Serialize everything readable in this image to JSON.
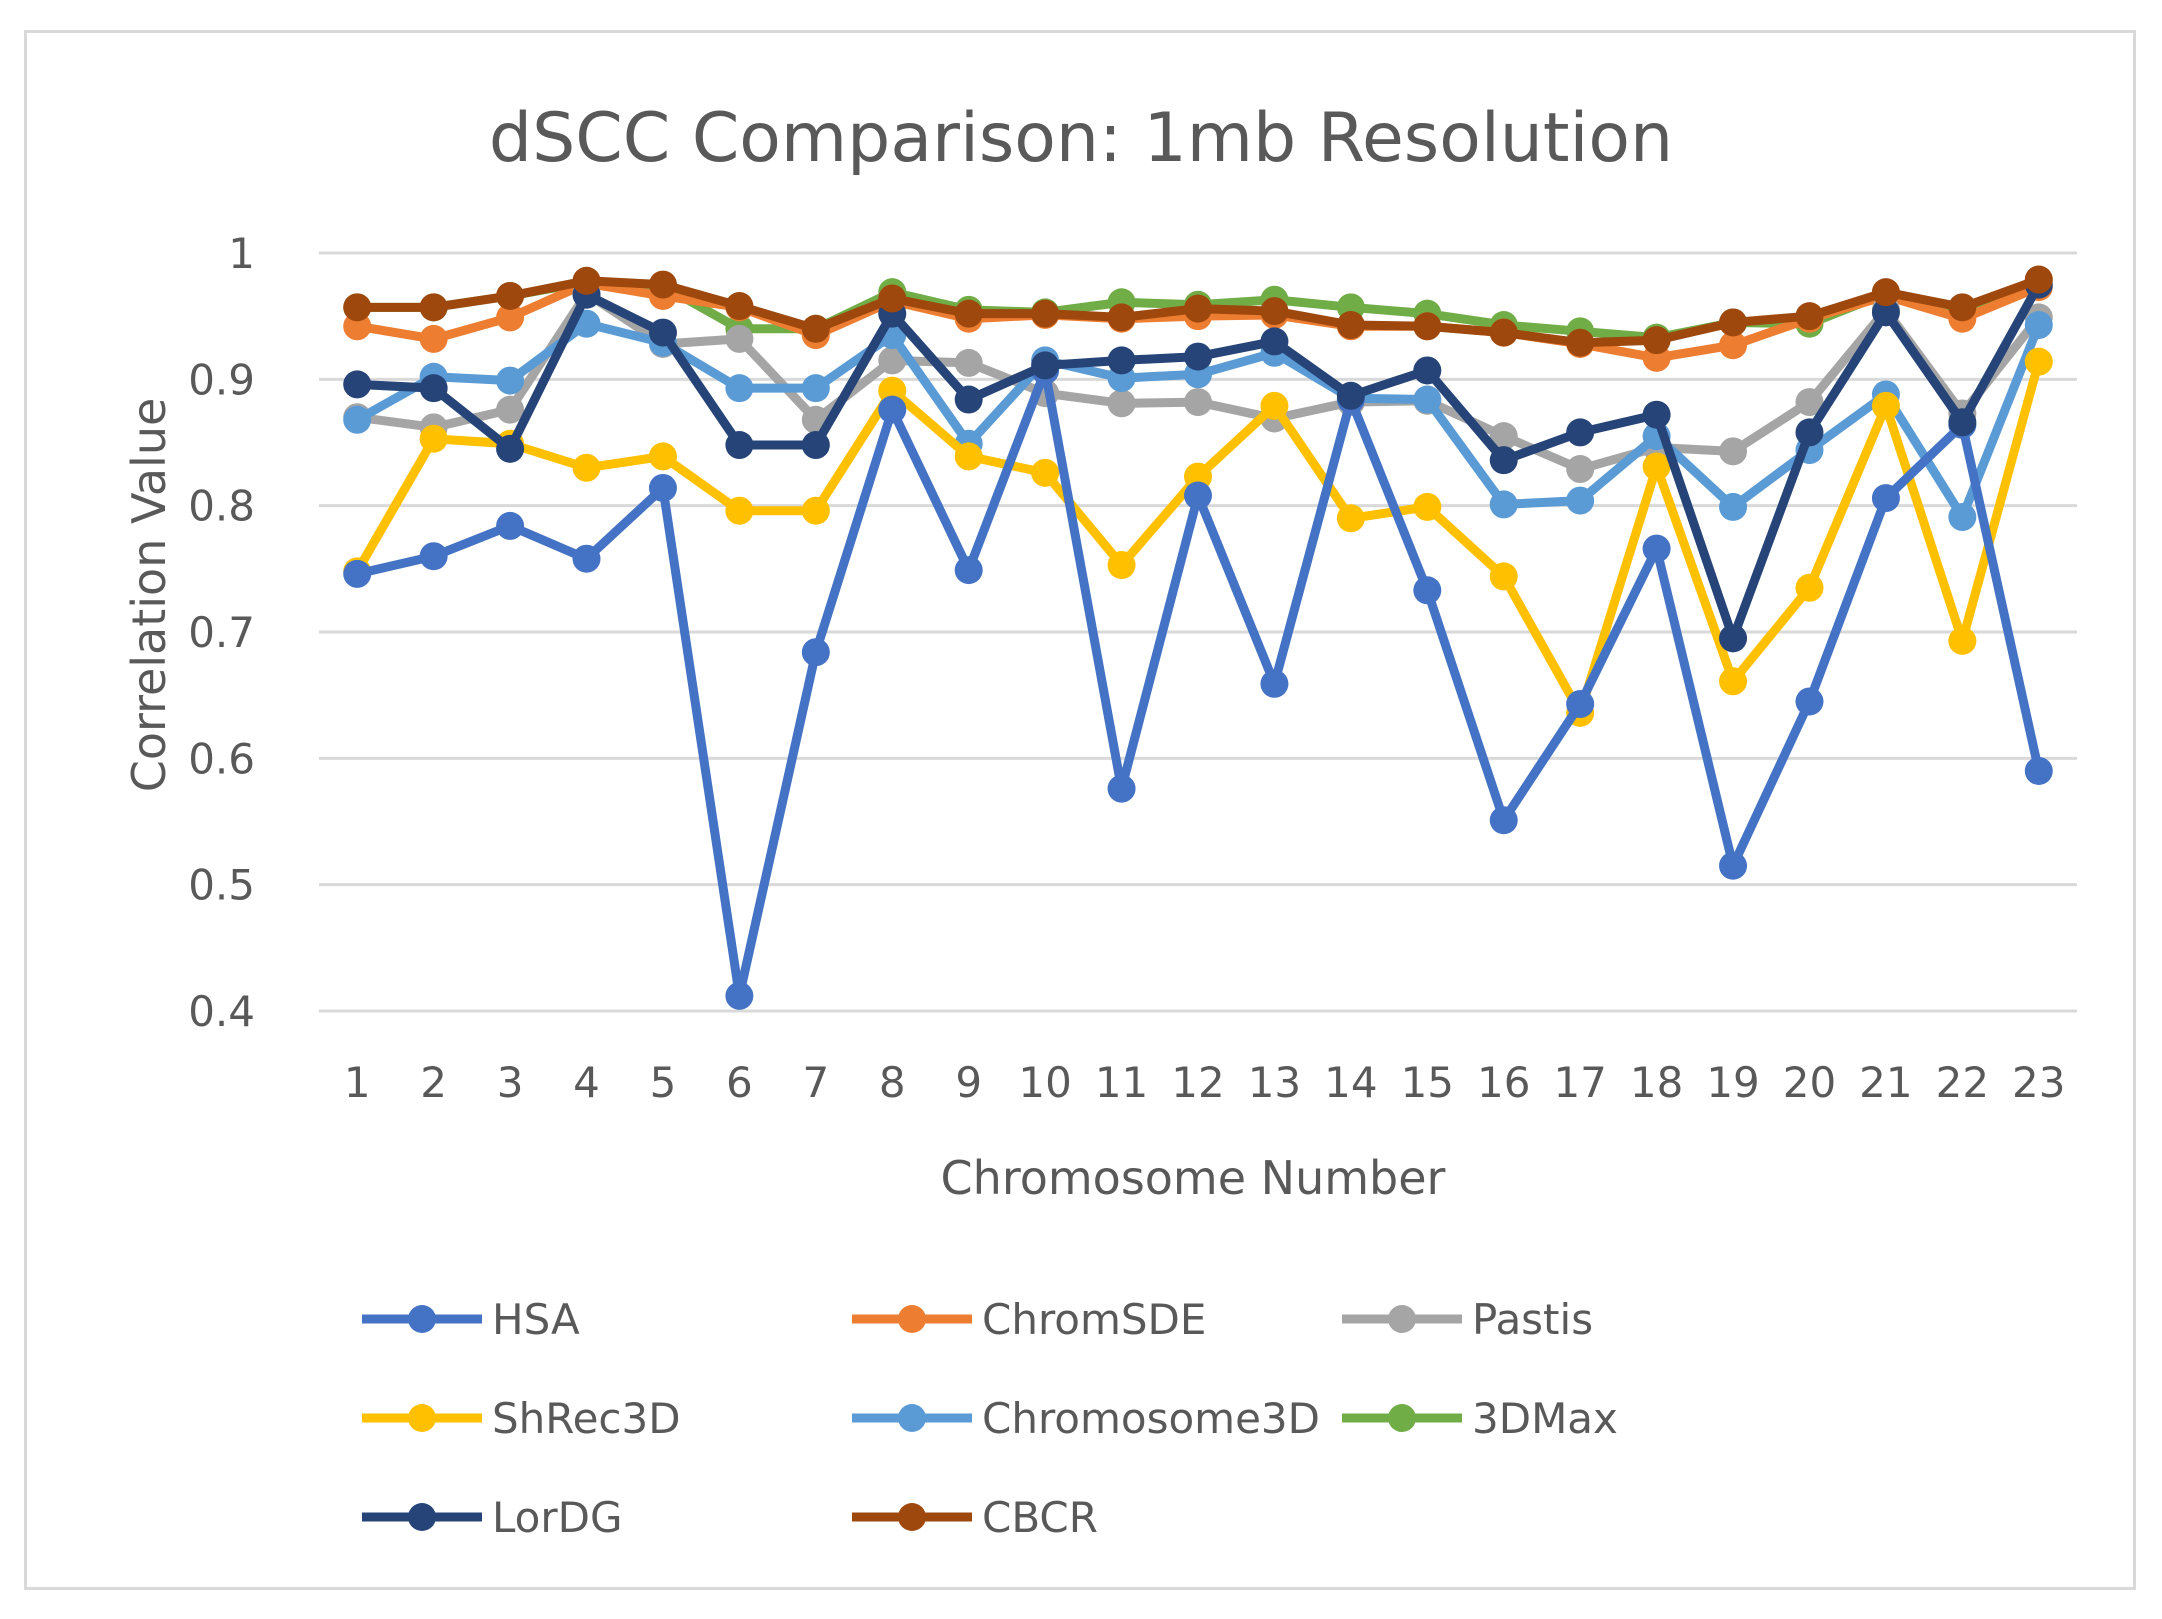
{
  "chart_data": {
    "type": "line",
    "title": "dSCC Comparison: 1mb Resolution",
    "xlabel": "Chromosome Number",
    "ylabel": "Correlation Value",
    "ylim": [
      0.4,
      1.0
    ],
    "yticks": [
      "0.4",
      "0.5",
      "0.6",
      "0.7",
      "0.8",
      "0.9",
      "1"
    ],
    "ytick_values": [
      0.4,
      0.5,
      0.6,
      0.7,
      0.8,
      0.9,
      1.0
    ],
    "grid": true,
    "legend_position": "bottom",
    "categories": [
      "1",
      "2",
      "3",
      "4",
      "5",
      "6",
      "7",
      "8",
      "9",
      "10",
      "11",
      "12",
      "13",
      "14",
      "15",
      "16",
      "17",
      "18",
      "19",
      "20",
      "21",
      "22",
      "23"
    ],
    "series": [
      {
        "name": "3DMax",
        "color": "#70ad47",
        "values": [
          0.957,
          0.957,
          0.966,
          0.977,
          0.974,
          0.94,
          0.94,
          0.969,
          0.955,
          0.953,
          0.961,
          0.959,
          0.963,
          0.957,
          0.952,
          0.943,
          0.938,
          0.933,
          0.945,
          0.944,
          0.968,
          0.956,
          0.978
        ]
      },
      {
        "name": "ChromSDE",
        "color": "#ed7d31",
        "values": [
          0.942,
          0.932,
          0.949,
          0.976,
          0.966,
          0.957,
          0.935,
          0.962,
          0.948,
          0.951,
          0.948,
          0.95,
          0.951,
          0.942,
          0.942,
          0.937,
          0.928,
          0.917,
          0.927,
          0.948,
          0.966,
          0.948,
          0.973
        ]
      },
      {
        "name": "Pastis",
        "color": "#a5a5a5",
        "values": [
          0.87,
          0.862,
          0.876,
          0.968,
          0.928,
          0.932,
          0.868,
          0.915,
          0.913,
          0.889,
          0.881,
          0.882,
          0.869,
          0.882,
          0.883,
          0.855,
          0.829,
          0.846,
          0.843,
          0.882,
          0.955,
          0.873,
          0.949
        ]
      },
      {
        "name": "Chromosome3D",
        "color": "#5b9bd5",
        "values": [
          0.868,
          0.902,
          0.899,
          0.944,
          0.929,
          0.893,
          0.893,
          0.935,
          0.849,
          0.915,
          0.901,
          0.904,
          0.921,
          0.885,
          0.884,
          0.801,
          0.804,
          0.855,
          0.799,
          0.844,
          0.888,
          0.791,
          0.943
        ]
      },
      {
        "name": "ShRec3D",
        "color": "#ffc000",
        "values": [
          0.748,
          0.853,
          0.849,
          0.83,
          0.839,
          0.796,
          0.796,
          0.891,
          0.839,
          0.826,
          0.753,
          0.823,
          0.879,
          0.79,
          0.799,
          0.744,
          0.636,
          0.831,
          0.661,
          0.735,
          0.879,
          0.693,
          0.914
        ]
      },
      {
        "name": "HSA",
        "color": "#4472c4",
        "values": [
          0.746,
          0.76,
          0.784,
          0.758,
          0.814,
          0.412,
          0.684,
          0.876,
          0.749,
          0.907,
          0.576,
          0.808,
          0.659,
          0.884,
          0.733,
          0.551,
          0.643,
          0.766,
          0.515,
          0.645,
          0.806,
          0.864,
          0.59
        ]
      },
      {
        "name": "LorDG",
        "color": "#264478",
        "values": [
          0.896,
          0.893,
          0.845,
          0.967,
          0.937,
          0.848,
          0.848,
          0.952,
          0.884,
          0.911,
          0.915,
          0.918,
          0.93,
          0.887,
          0.907,
          0.836,
          0.858,
          0.872,
          0.695,
          0.858,
          0.953,
          0.866,
          0.975
        ]
      },
      {
        "name": "CBCR",
        "color": "#9e480e",
        "values": [
          0.957,
          0.957,
          0.966,
          0.978,
          0.975,
          0.958,
          0.94,
          0.964,
          0.952,
          0.952,
          0.949,
          0.956,
          0.954,
          0.943,
          0.942,
          0.937,
          0.929,
          0.931,
          0.945,
          0.95,
          0.969,
          0.957,
          0.979
        ]
      }
    ],
    "legend_order": [
      "HSA",
      "ChromSDE",
      "Pastis",
      "ShRec3D",
      "Chromosome3D",
      "3DMax",
      "LorDG",
      "CBCR"
    ]
  }
}
